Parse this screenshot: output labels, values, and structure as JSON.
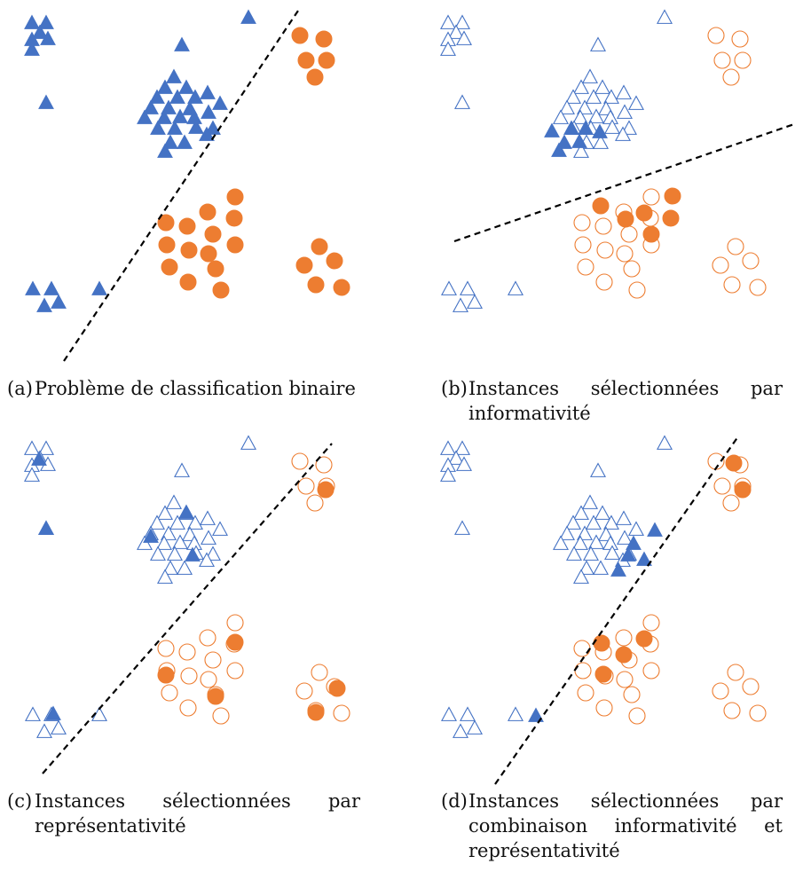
{
  "colors": {
    "blue": "#4472C4",
    "orange": "#ED7D31",
    "line": "#000000"
  },
  "panels": [
    {
      "tag": "(a)",
      "caption": "Problème de classification binaire",
      "line": "dashed",
      "triangles_all_filled": true,
      "circles_all_filled": true
    },
    {
      "tag": "(b)",
      "caption": "Instances sélectionnées par informativité",
      "line": "dashed",
      "triangles_all_filled": false,
      "circles_all_filled": false
    },
    {
      "tag": "(c)",
      "caption": "Instances sélectionnées par représentativité",
      "line": "dashed",
      "triangles_all_filled": false,
      "circles_all_filled": false
    },
    {
      "tag": "(d)",
      "caption": "Instances sélectionnées par combinaison informativité et représentativité",
      "line": "dashed",
      "triangles_all_filled": false,
      "circles_all_filled": false
    }
  ]
}
